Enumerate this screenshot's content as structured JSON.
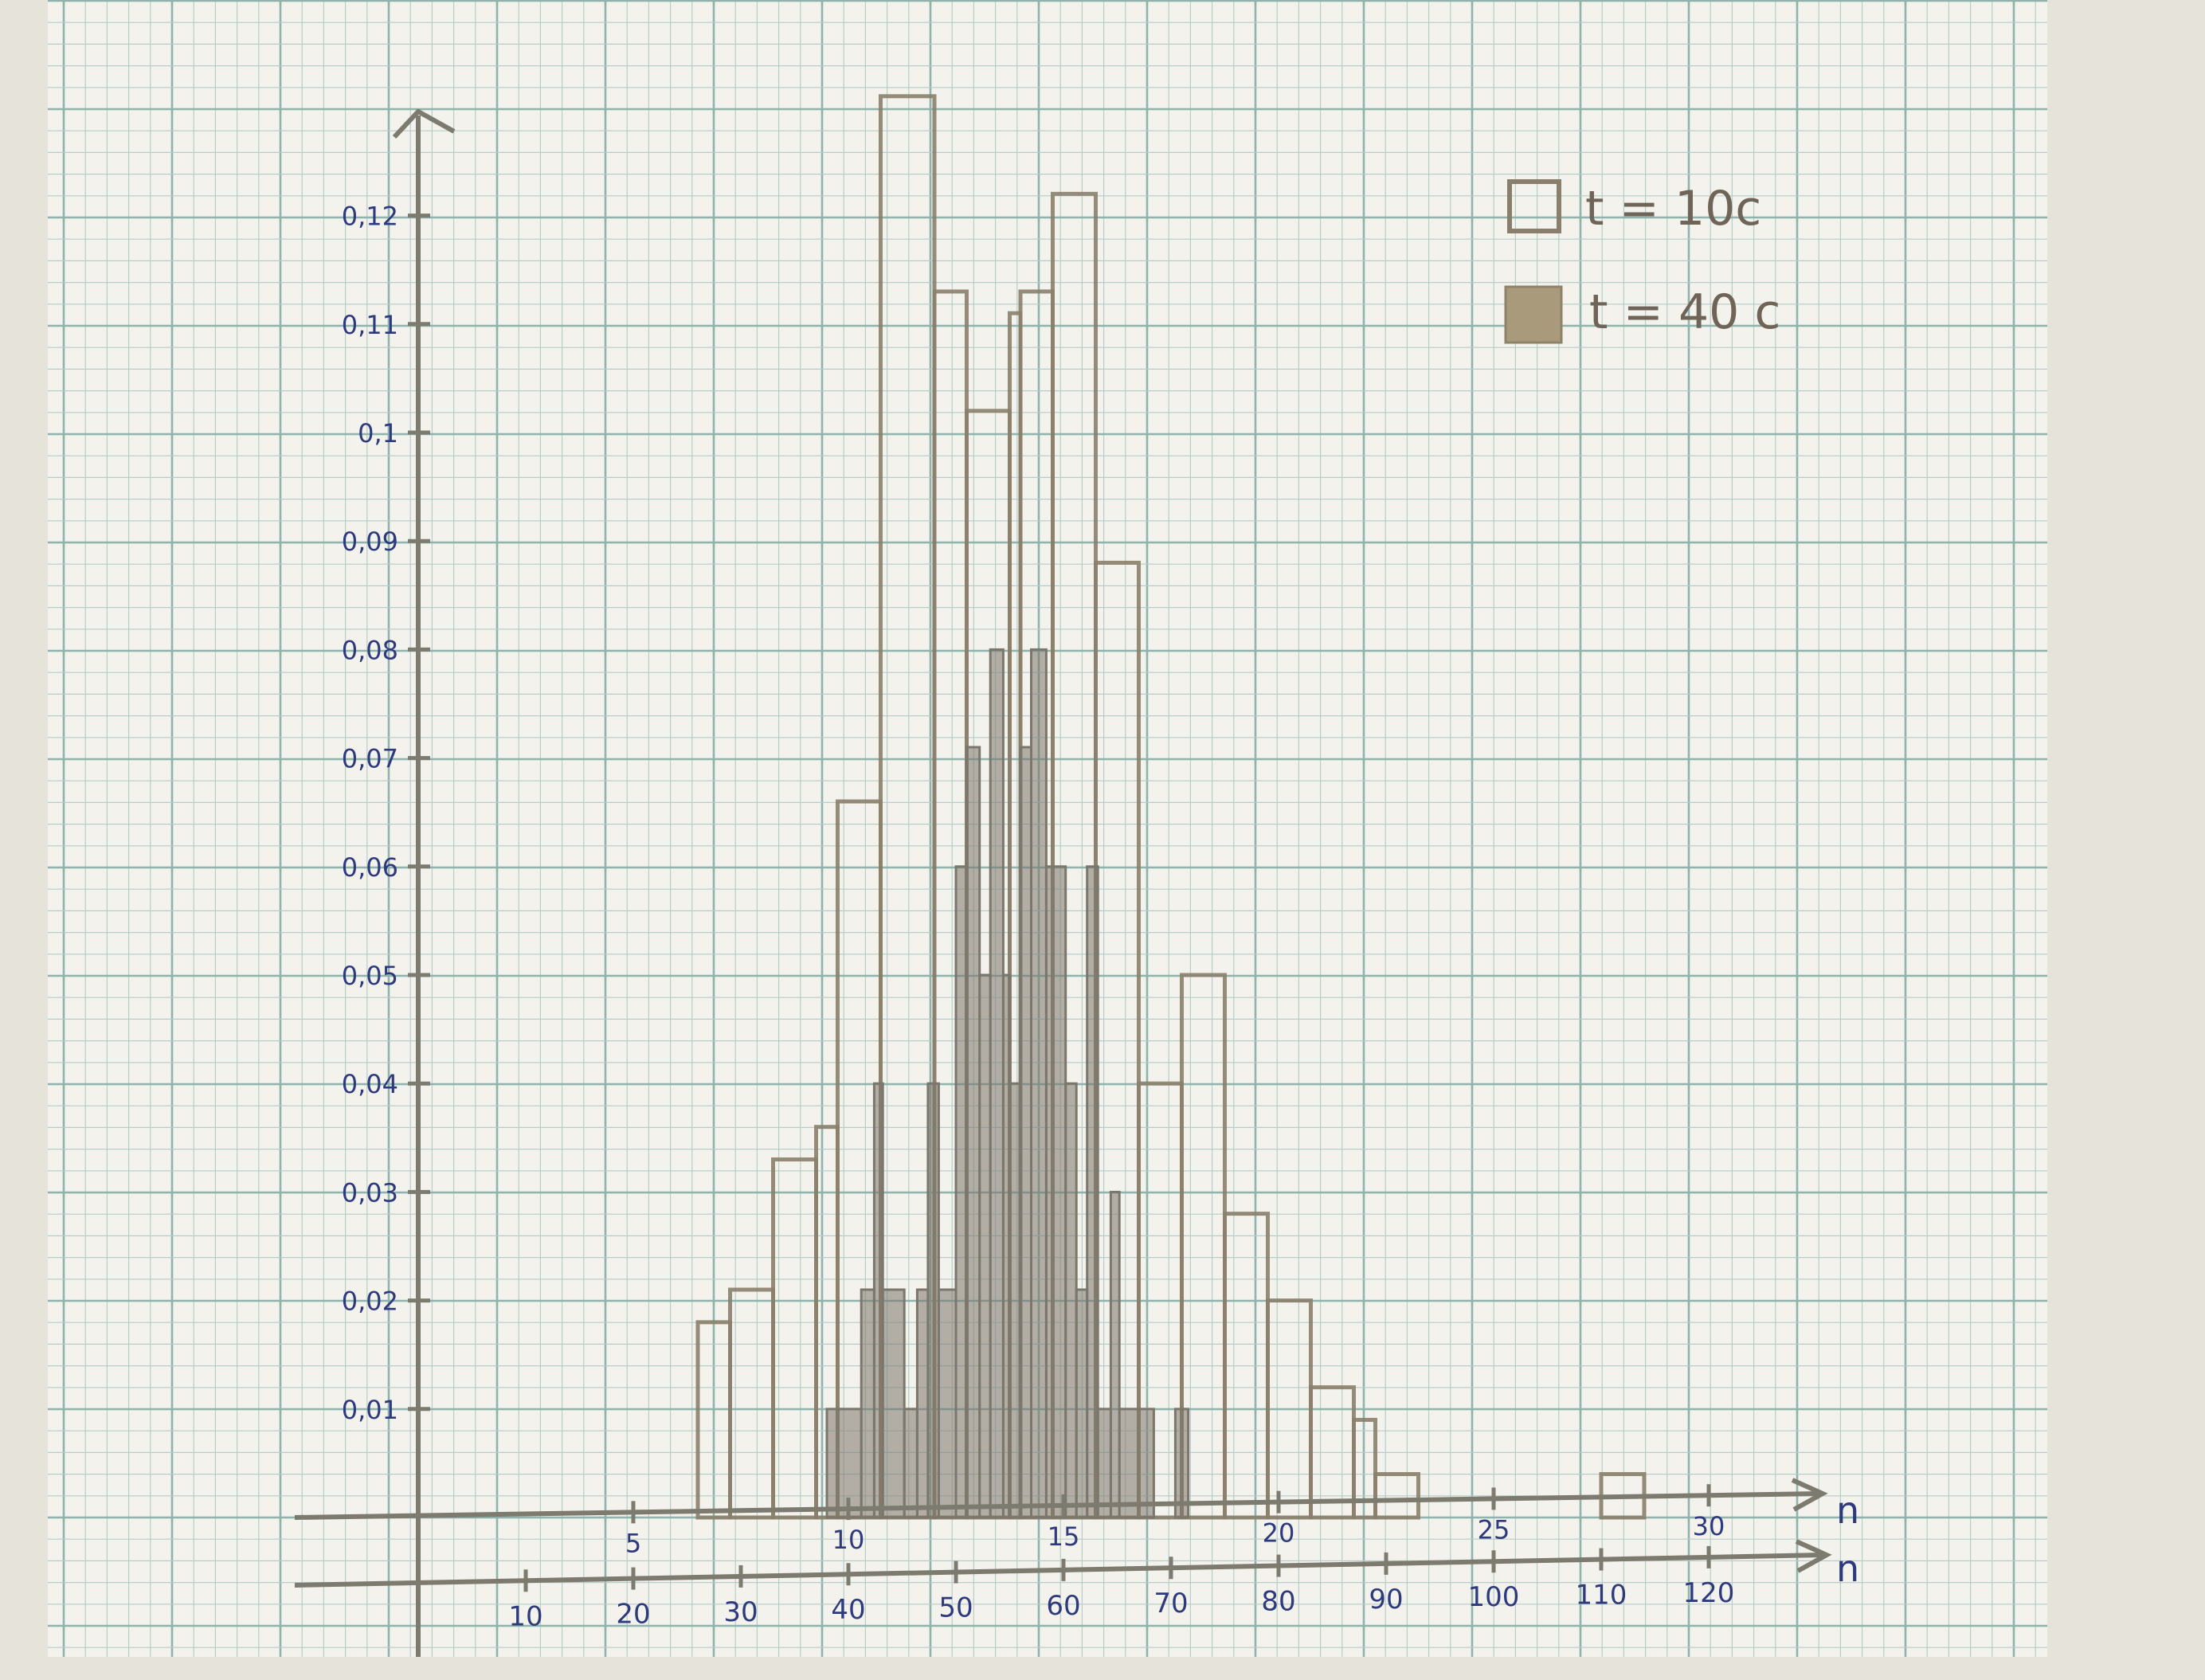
{
  "chart_data": {
    "type": "bar",
    "title": "",
    "colors": {
      "paper": "#f4f2ec",
      "grid_minor": "#b6cdc9",
      "grid_major": "#8fb2ad",
      "outline": "#8a7f6c",
      "fill": "#7c776c",
      "axis": "#7d7a70",
      "tick_label": "#2e3a7e"
    },
    "y_axis": {
      "ticks": [
        "0,01",
        "0,02",
        "0,03",
        "0,04",
        "0,05",
        "0,06",
        "0,07",
        "0,08",
        "0,09",
        "0,1",
        "0,11",
        "0,12"
      ],
      "ylim": [
        0,
        0.13
      ]
    },
    "x_axis_top": {
      "label": "n",
      "ticks": [
        "5",
        "10",
        "15",
        "20",
        "25",
        "30"
      ],
      "xlim": [
        0,
        32
      ]
    },
    "x_axis_bottom": {
      "label": "n",
      "ticks": [
        "10",
        "20",
        "30",
        "40",
        "50",
        "60",
        "70",
        "80",
        "90",
        "100",
        "110",
        "120"
      ],
      "xlim": [
        0,
        128
      ]
    },
    "legend": {
      "placement": "top-right",
      "items": [
        {
          "label": "t = 10c",
          "style": "outline"
        },
        {
          "label": "t = 40 c",
          "style": "filled"
        }
      ]
    },
    "series": [
      {
        "legend_index": 0,
        "axis": "bottom",
        "bins": [
          {
            "x0": 26,
            "x1": 29,
            "y": 0.018
          },
          {
            "x0": 29,
            "x1": 33,
            "y": 0.021
          },
          {
            "x0": 33,
            "x1": 37,
            "y": 0.033
          },
          {
            "x0": 37,
            "x1": 39,
            "y": 0.036
          },
          {
            "x0": 39,
            "x1": 43,
            "y": 0.066
          },
          {
            "x0": 43,
            "x1": 48,
            "y": 0.131
          },
          {
            "x0": 48,
            "x1": 51,
            "y": 0.113
          },
          {
            "x0": 51,
            "x1": 55,
            "y": 0.102
          },
          {
            "x0": 55,
            "x1": 56,
            "y": 0.111
          },
          {
            "x0": 56,
            "x1": 59,
            "y": 0.113
          },
          {
            "x0": 59,
            "x1": 63,
            "y": 0.122
          },
          {
            "x0": 63,
            "x1": 67,
            "y": 0.088
          },
          {
            "x0": 67,
            "x1": 71,
            "y": 0.04
          },
          {
            "x0": 71,
            "x1": 75,
            "y": 0.05
          },
          {
            "x0": 75,
            "x1": 79,
            "y": 0.028
          },
          {
            "x0": 79,
            "x1": 83,
            "y": 0.02
          },
          {
            "x0": 83,
            "x1": 87,
            "y": 0.012
          },
          {
            "x0": 87,
            "x1": 89,
            "y": 0.009
          },
          {
            "x0": 89,
            "x1": 93,
            "y": 0.004
          },
          {
            "x0": 93,
            "x1": 110,
            "y": 0
          },
          {
            "x0": 110,
            "x1": 114,
            "y": 0.004
          }
        ]
      },
      {
        "legend_index": 1,
        "axis": "top",
        "bins": [
          {
            "x0": 9.5,
            "x1": 10.3,
            "y": 0.01
          },
          {
            "x0": 10.3,
            "x1": 10.6,
            "y": 0.021
          },
          {
            "x0": 10.6,
            "x1": 10.8,
            "y": 0.04
          },
          {
            "x0": 10.8,
            "x1": 11.3,
            "y": 0.021
          },
          {
            "x0": 11.3,
            "x1": 11.6,
            "y": 0.01
          },
          {
            "x0": 11.6,
            "x1": 11.85,
            "y": 0.021
          },
          {
            "x0": 11.85,
            "x1": 12.1,
            "y": 0.04
          },
          {
            "x0": 12.1,
            "x1": 12.5,
            "y": 0.021
          },
          {
            "x0": 12.5,
            "x1": 12.75,
            "y": 0.06
          },
          {
            "x0": 12.75,
            "x1": 13.05,
            "y": 0.071
          },
          {
            "x0": 13.05,
            "x1": 13.3,
            "y": 0.05
          },
          {
            "x0": 13.3,
            "x1": 13.6,
            "y": 0.08
          },
          {
            "x0": 13.6,
            "x1": 13.75,
            "y": 0.05
          },
          {
            "x0": 13.75,
            "x1": 14.0,
            "y": 0.04
          },
          {
            "x0": 14.0,
            "x1": 14.25,
            "y": 0.071
          },
          {
            "x0": 14.25,
            "x1": 14.6,
            "y": 0.08
          },
          {
            "x0": 14.6,
            "x1": 15.05,
            "y": 0.06
          },
          {
            "x0": 15.05,
            "x1": 15.3,
            "y": 0.04
          },
          {
            "x0": 15.3,
            "x1": 15.55,
            "y": 0.021
          },
          {
            "x0": 15.55,
            "x1": 15.8,
            "y": 0.06
          },
          {
            "x0": 15.8,
            "x1": 16.1,
            "y": 0.01
          },
          {
            "x0": 16.1,
            "x1": 16.3,
            "y": 0.03
          },
          {
            "x0": 16.3,
            "x1": 17.1,
            "y": 0.01
          },
          {
            "x0": 17.6,
            "x1": 17.9,
            "y": 0.01
          }
        ]
      }
    ]
  }
}
